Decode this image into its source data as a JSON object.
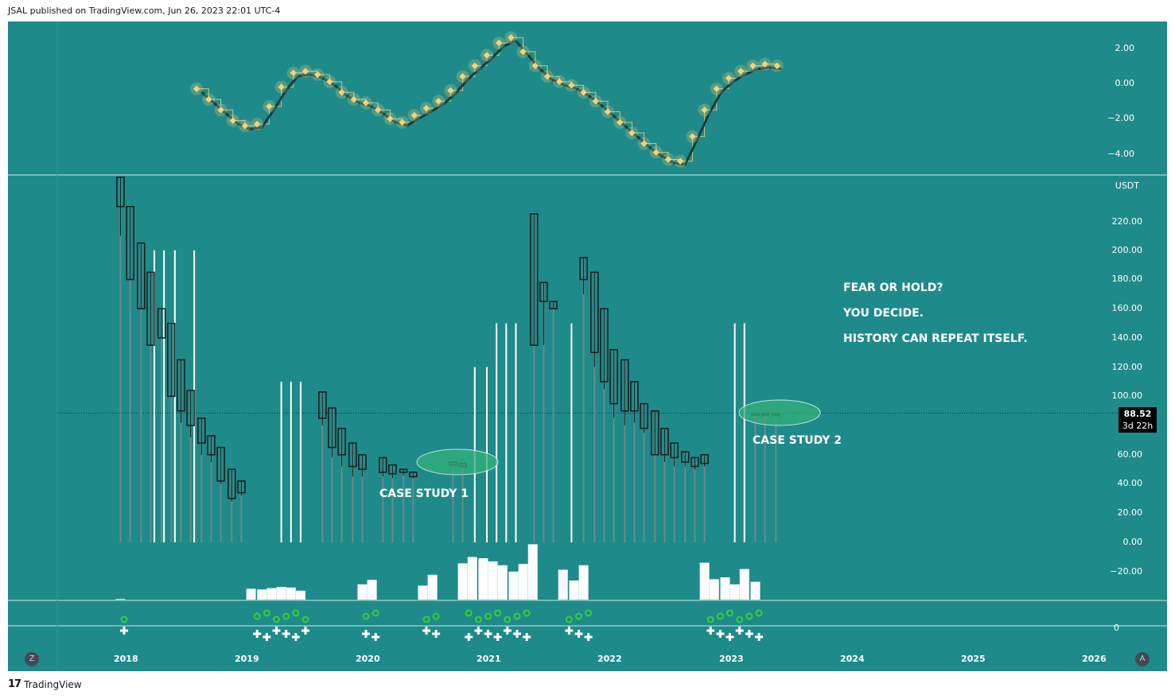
{
  "header": {
    "published": "JSAL published on TradingView.com, Jun 26, 2023 22:01 UTC-4"
  },
  "footer": {
    "logo_mark": "17",
    "brand": "TradingView"
  },
  "colors": {
    "background": "#1f8a8a",
    "candle": "#1a1a1a",
    "diamond": "#f3d27a",
    "volume": "#ffffff",
    "signal_circle": "#35d135",
    "plus": "#ffffff",
    "ellipse": "#33b07a",
    "osc_line": "#123b3b"
  },
  "osc_axis": {
    "labels": [
      "2.00",
      "0.00",
      "−2.00",
      "−4.00"
    ]
  },
  "price_axis": {
    "currency": "USDT",
    "labels": [
      "220.00",
      "200.00",
      "180.00",
      "160.00",
      "140.00",
      "120.00",
      "100.00",
      "60.00",
      "40.00",
      "20.00",
      "0.00",
      "−20.00"
    ]
  },
  "bottom_axis": {
    "labels": [
      "0"
    ]
  },
  "time_axis": {
    "labels": [
      "2018",
      "2019",
      "2020",
      "2021",
      "2022",
      "2023",
      "2024",
      "2025",
      "2026"
    ]
  },
  "price_tag": {
    "price": "88.52",
    "countdown": "3d 22h"
  },
  "buttons": {
    "left": "Z",
    "right": "A"
  },
  "annotations": {
    "case1": "CASE STUDY 1",
    "case2": "CASE STUDY 2",
    "note1": "FEAR OR HOLD?",
    "note2": "YOU DECIDE.",
    "note3": "HISTORY CAN REPEAT ITSELF."
  },
  "chart_data": {
    "type": "candlestick",
    "title": "",
    "ylabel": "USDT",
    "ylim": [
      -40,
      250
    ],
    "last_price": 88.52,
    "candles": [
      [
        2017.97,
        250,
        250,
        210,
        230
      ],
      [
        2018.05,
        230,
        230,
        180,
        180
      ],
      [
        2018.14,
        205,
        205,
        160,
        160
      ],
      [
        2018.22,
        185,
        185,
        135,
        135
      ],
      [
        2018.31,
        160,
        160,
        140,
        140
      ],
      [
        2018.39,
        150,
        150,
        100,
        100
      ],
      [
        2018.47,
        125,
        125,
        82,
        90
      ],
      [
        2018.55,
        104,
        104,
        72,
        80
      ],
      [
        2018.64,
        85,
        85,
        60,
        68
      ],
      [
        2018.72,
        73,
        73,
        55,
        60
      ],
      [
        2018.8,
        65,
        65,
        40,
        42
      ],
      [
        2018.89,
        50,
        50,
        28,
        30
      ],
      [
        2018.97,
        42,
        42,
        32,
        34
      ],
      [
        2019.64,
        103,
        103,
        80,
        85
      ],
      [
        2019.72,
        92,
        92,
        58,
        65
      ],
      [
        2019.8,
        78,
        78,
        52,
        60
      ],
      [
        2019.89,
        68,
        68,
        45,
        52
      ],
      [
        2019.97,
        60,
        60,
        45,
        50
      ],
      [
        2020.14,
        58,
        58,
        45,
        48
      ],
      [
        2020.22,
        53,
        53,
        44,
        47
      ],
      [
        2020.31,
        50,
        50,
        46,
        48
      ],
      [
        2020.39,
        48,
        48,
        44,
        45
      ],
      [
        2020.72,
        55,
        55,
        52,
        53
      ],
      [
        2020.8,
        54,
        54,
        51,
        52
      ],
      [
        2021.39,
        225,
        225,
        135,
        135
      ],
      [
        2021.47,
        178,
        178,
        135,
        165
      ],
      [
        2021.55,
        165,
        165,
        160,
        160
      ],
      [
        2021.8,
        195,
        195,
        170,
        180
      ],
      [
        2021.89,
        185,
        185,
        120,
        130
      ],
      [
        2021.97,
        160,
        160,
        105,
        110
      ],
      [
        2022.05,
        132,
        132,
        85,
        95
      ],
      [
        2022.14,
        125,
        125,
        80,
        90
      ],
      [
        2022.22,
        110,
        110,
        82,
        90
      ],
      [
        2022.3,
        95,
        95,
        75,
        78
      ],
      [
        2022.39,
        90,
        90,
        60,
        60
      ],
      [
        2022.47,
        78,
        78,
        55,
        60
      ],
      [
        2022.55,
        68,
        68,
        52,
        58
      ],
      [
        2022.64,
        62,
        62,
        52,
        55
      ],
      [
        2022.72,
        58,
        58,
        50,
        52
      ],
      [
        2022.8,
        60,
        60,
        52,
        54
      ],
      [
        2023.22,
        88,
        88,
        88,
        88
      ],
      [
        2023.3,
        88,
        88,
        88,
        88
      ],
      [
        2023.39,
        88,
        88,
        88,
        88
      ]
    ],
    "oscillator": {
      "range": [
        -5,
        3
      ],
      "x": [
        2018.6,
        2018.7,
        2018.8,
        2018.9,
        2019.0,
        2019.1,
        2019.2,
        2019.3,
        2019.4,
        2019.5,
        2019.6,
        2019.7,
        2019.8,
        2019.9,
        2020.0,
        2020.1,
        2020.2,
        2020.3,
        2020.4,
        2020.5,
        2020.6,
        2020.7,
        2020.8,
        2020.9,
        2021.0,
        2021.1,
        2021.2,
        2021.3,
        2021.4,
        2021.5,
        2021.6,
        2021.7,
        2021.8,
        2021.9,
        2022.0,
        2022.1,
        2022.2,
        2022.3,
        2022.4,
        2022.5,
        2022.6,
        2022.7,
        2022.8,
        2022.9,
        2023.0,
        2023.1,
        2023.2,
        2023.3,
        2023.4
      ],
      "values": [
        -0.3,
        -0.9,
        -1.5,
        -2.1,
        -2.4,
        -2.3,
        -1.3,
        -0.2,
        0.6,
        0.7,
        0.5,
        0.1,
        -0.5,
        -0.9,
        -1.1,
        -1.5,
        -2.0,
        -2.2,
        -1.8,
        -1.4,
        -1.0,
        -0.4,
        0.4,
        1.0,
        1.6,
        2.3,
        2.6,
        1.8,
        1.0,
        0.4,
        0.1,
        -0.1,
        -0.5,
        -1.0,
        -1.6,
        -2.2,
        -2.8,
        -3.4,
        -3.9,
        -4.3,
        -4.4,
        -3.0,
        -1.5,
        -0.3,
        0.3,
        0.7,
        1.0,
        1.1,
        1.0
      ]
    },
    "volume": [
      [
        2017.97,
        1
      ],
      [
        2019.05,
        17
      ],
      [
        2019.14,
        16
      ],
      [
        2019.22,
        18
      ],
      [
        2019.3,
        20
      ],
      [
        2019.38,
        19
      ],
      [
        2019.46,
        14
      ],
      [
        2019.97,
        24
      ],
      [
        2020.05,
        31
      ],
      [
        2020.47,
        22
      ],
      [
        2020.55,
        39
      ],
      [
        2020.8,
        57
      ],
      [
        2020.88,
        67
      ],
      [
        2020.97,
        65
      ],
      [
        2021.05,
        60
      ],
      [
        2021.13,
        54
      ],
      [
        2021.22,
        44
      ],
      [
        2021.3,
        56
      ],
      [
        2021.38,
        87
      ],
      [
        2021.63,
        47
      ],
      [
        2021.72,
        30
      ],
      [
        2021.8,
        54
      ],
      [
        2022.8,
        58
      ],
      [
        2022.88,
        32
      ],
      [
        2022.97,
        35
      ],
      [
        2023.05,
        24
      ],
      [
        2023.13,
        48
      ],
      [
        2023.22,
        28
      ]
    ],
    "signals": [
      2018.0,
      2019.1,
      2019.18,
      2019.26,
      2019.34,
      2019.42,
      2019.5,
      2020.0,
      2020.08,
      2020.5,
      2020.58,
      2020.85,
      2020.93,
      2021.01,
      2021.09,
      2021.17,
      2021.25,
      2021.33,
      2021.68,
      2021.76,
      2021.84,
      2022.85,
      2022.93,
      2023.01,
      2023.09,
      2023.17,
      2023.25
    ]
  }
}
